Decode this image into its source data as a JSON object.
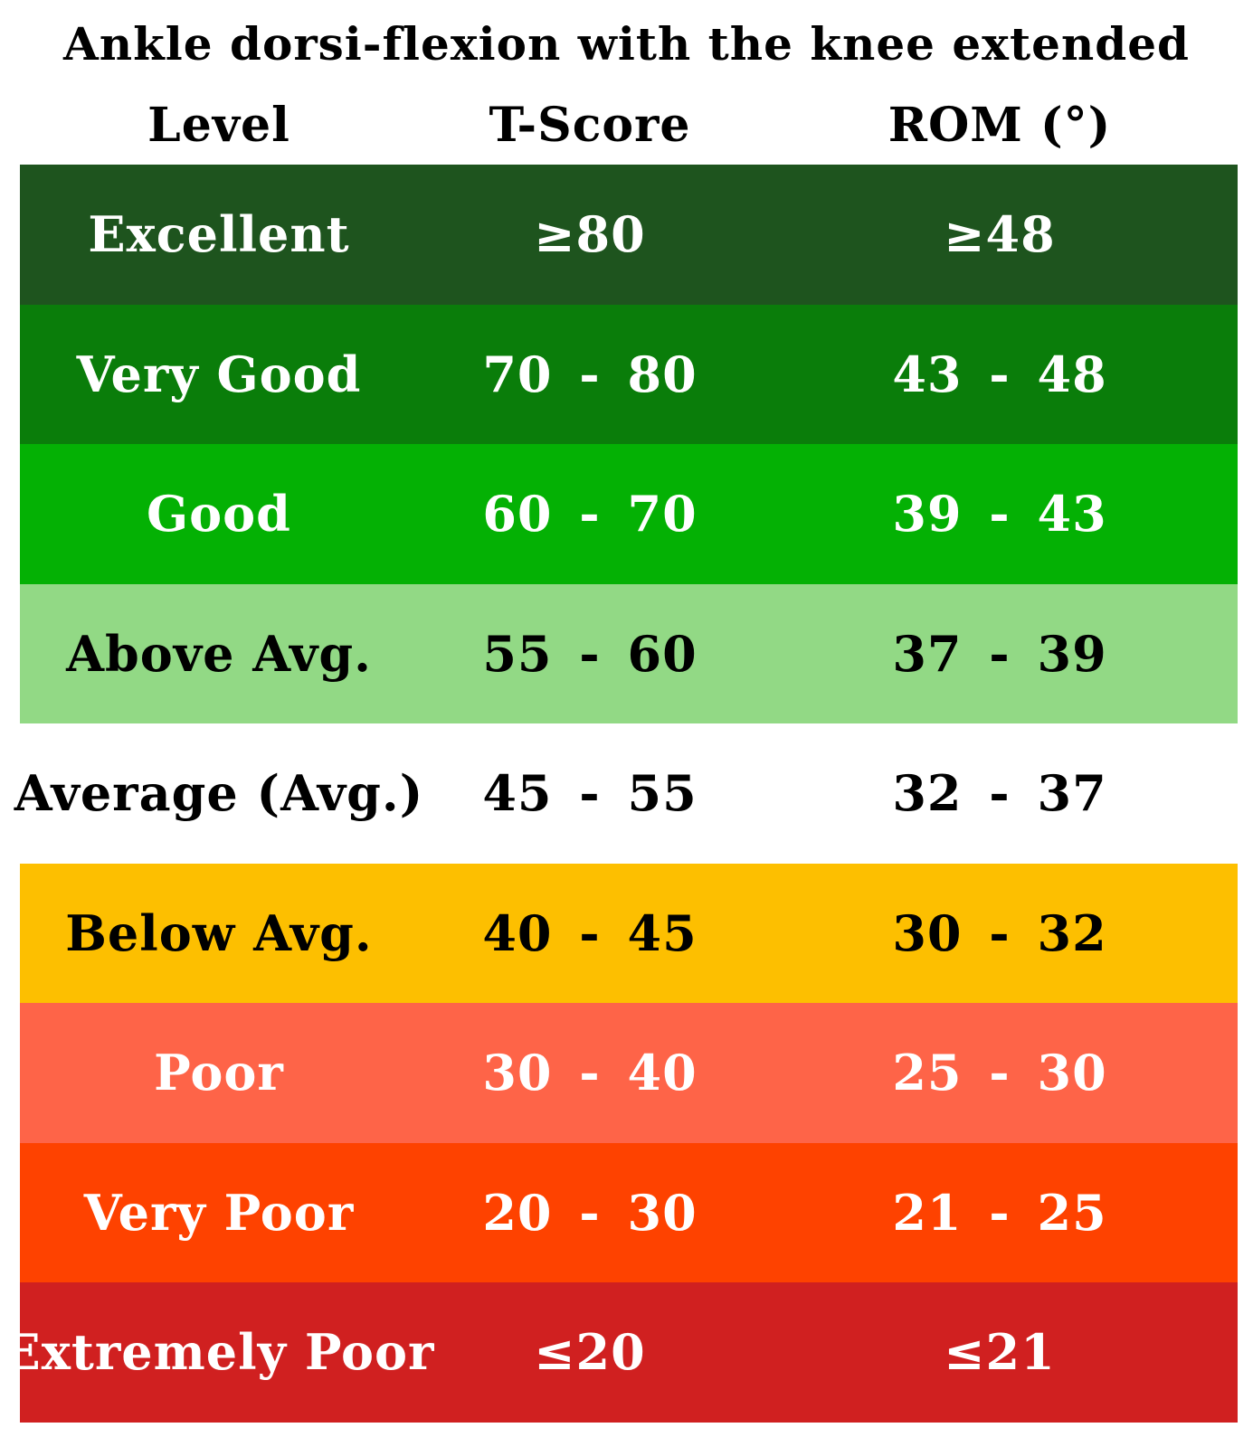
{
  "chart_data": {
    "type": "table",
    "title": "Ankle dorsi-flexion with the knee extended",
    "columns": [
      "Level",
      "T-Score",
      "ROM (°)"
    ],
    "rows": [
      {
        "level": "Excellent",
        "t_score": "≥80",
        "rom": "≥48",
        "bg": "#1e541e",
        "fg": "#ffffff"
      },
      {
        "level": "Very Good",
        "t_score": "70  -  80",
        "rom": "43  -  48",
        "bg": "#0a7d0a",
        "fg": "#ffffff"
      },
      {
        "level": "Good",
        "t_score": "60  -  70",
        "rom": "39  -  43",
        "bg": "#04b104",
        "fg": "#ffffff"
      },
      {
        "level": "Above Avg.",
        "t_score": "55  -  60",
        "rom": "37  -  39",
        "bg": "#92d985",
        "fg": "#000000"
      },
      {
        "level": "Average (Avg.)",
        "t_score": "45  -  55",
        "rom": "32  -  37",
        "bg": "#ffffff",
        "fg": "#000000"
      },
      {
        "level": "Below Avg.",
        "t_score": "40  -  45",
        "rom": "30  -  32",
        "bg": "#fdbf00",
        "fg": "#000000"
      },
      {
        "level": "Poor",
        "t_score": "30  -  40",
        "rom": "25  -  30",
        "bg": "#fe6448",
        "fg": "#ffffff"
      },
      {
        "level": "Very Poor",
        "t_score": "20  -  30",
        "rom": "21  -  25",
        "bg": "#fe4200",
        "fg": "#ffffff"
      },
      {
        "level": "Extremely Poor",
        "t_score": "≤20",
        "rom": "≤21",
        "bg": "#d02020",
        "fg": "#ffffff"
      }
    ]
  }
}
